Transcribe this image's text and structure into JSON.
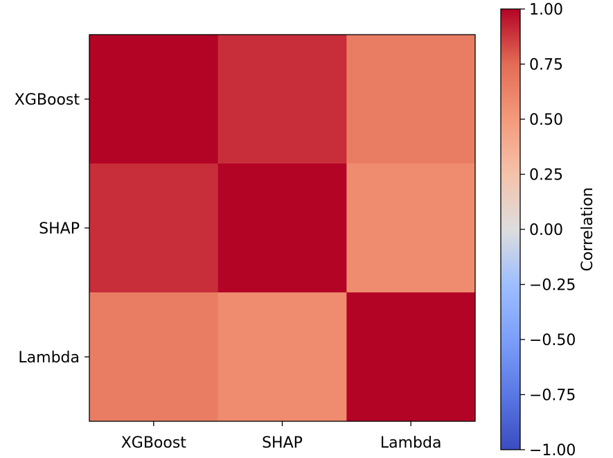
{
  "chart_data": {
    "type": "heatmap",
    "row_labels": [
      "XGBoost",
      "SHAP",
      "Lambda"
    ],
    "col_labels": [
      "XGBoost",
      "SHAP",
      "Lambda"
    ],
    "values": [
      [
        1.0,
        0.9,
        0.66
      ],
      [
        0.9,
        1.0,
        0.58
      ],
      [
        0.66,
        0.58,
        1.0
      ]
    ],
    "colormap": "coolwarm",
    "vmin": -1.0,
    "vmax": 1.0,
    "colorbar": {
      "label": "Correlation",
      "ticks": [
        1.0,
        0.75,
        0.5,
        0.25,
        0.0,
        -0.25,
        -0.5,
        -0.75,
        -1.0
      ],
      "tick_labels": [
        "1.00",
        "0.75",
        "0.50",
        "0.25",
        "0.00",
        "−0.25",
        "−0.50",
        "−0.75",
        "−1.00"
      ]
    }
  }
}
